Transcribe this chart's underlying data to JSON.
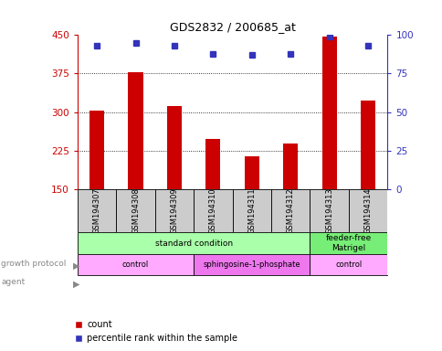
{
  "title": "GDS2832 / 200685_at",
  "samples": [
    "GSM194307",
    "GSM194308",
    "GSM194309",
    "GSM194310",
    "GSM194311",
    "GSM194312",
    "GSM194313",
    "GSM194314"
  ],
  "counts": [
    303,
    378,
    312,
    247,
    213,
    238,
    447,
    323
  ],
  "percentile_ranks": [
    93,
    95,
    93,
    88,
    87,
    88,
    99,
    93
  ],
  "ylim_left": [
    150,
    450
  ],
  "ylim_right": [
    0,
    100
  ],
  "yticks_left": [
    150,
    225,
    300,
    375,
    450
  ],
  "yticks_right": [
    0,
    25,
    50,
    75,
    100
  ],
  "bar_color": "#cc0000",
  "dot_color": "#3333bb",
  "grid_color": "#000000",
  "growth_protocol": [
    {
      "text": "standard condition",
      "start": 0,
      "end": 6,
      "color": "#aaffaa"
    },
    {
      "text": "feeder-free\nMatrigel",
      "start": 6,
      "end": 8,
      "color": "#77ee77"
    }
  ],
  "agent": [
    {
      "text": "control",
      "start": 0,
      "end": 3,
      "color": "#ffaaff"
    },
    {
      "text": "sphingosine-1-phosphate",
      "start": 3,
      "end": 6,
      "color": "#ee77ee"
    },
    {
      "text": "control",
      "start": 6,
      "end": 8,
      "color": "#ffaaff"
    }
  ],
  "legend_count_label": "count",
  "legend_pct_label": "percentile rank within the sample",
  "tick_color_left": "#cc0000",
  "tick_color_right": "#3333bb",
  "sample_box_color": "#cccccc",
  "label_color": "#888888"
}
